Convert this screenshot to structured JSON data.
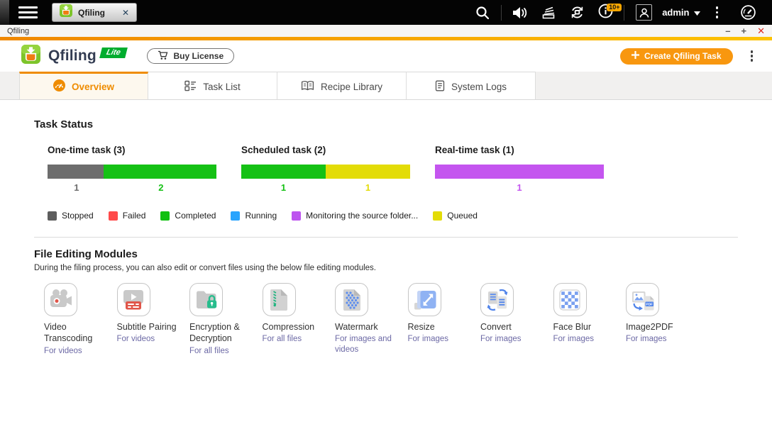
{
  "taskbar": {
    "tab_label": "Qfiling",
    "tab_close_glyph": "✕",
    "notification_badge": "10+",
    "username": "admin",
    "icon_names": [
      "main-menu-icon",
      "qfiling-logo-icon",
      "search-icon",
      "volume-icon",
      "background-tasks-icon",
      "sync-icon",
      "notifications-icon",
      "user-avatar-icon",
      "more-menu-icon",
      "resource-monitor-icon"
    ]
  },
  "window": {
    "title": "Qfiling",
    "minimize_glyph": "–",
    "maximize_glyph": "+",
    "close_glyph": "✕"
  },
  "header": {
    "app_name": "Qfiling",
    "edition_badge": "Lite",
    "buy_license_label": "Buy License",
    "create_task_label": "Create Qfiling Task"
  },
  "tabs": [
    {
      "label": "Overview",
      "icon": "overview",
      "active": true
    },
    {
      "label": "Task List",
      "icon": "tasklist",
      "active": false
    },
    {
      "label": "Recipe Library",
      "icon": "recipes",
      "active": false
    },
    {
      "label": "System Logs",
      "icon": "syslogs",
      "active": false
    }
  ],
  "task_status": {
    "title": "Task Status",
    "groups": [
      {
        "title": "One-time task (3)",
        "segments": [
          {
            "value": 1,
            "status": "Stopped",
            "color": "#6d6d6d"
          },
          {
            "value": 2,
            "status": "Completed",
            "color": "#15c115"
          }
        ]
      },
      {
        "title": "Scheduled task (2)",
        "segments": [
          {
            "value": 1,
            "status": "Completed",
            "color": "#15c115"
          },
          {
            "value": 1,
            "status": "Queued",
            "color": "#e3dc07"
          }
        ]
      },
      {
        "title": "Real-time task (1)",
        "segments": [
          {
            "value": 1,
            "status": "Monitoring the source folder",
            "color": "#c455ef"
          }
        ]
      }
    ],
    "legend": [
      {
        "label": "Stopped",
        "color": "#5d5d5d"
      },
      {
        "label": "Failed",
        "color": "#ff4a4a"
      },
      {
        "label": "Completed",
        "color": "#10c010"
      },
      {
        "label": "Running",
        "color": "#2aa4fd"
      },
      {
        "label": "Monitoring the source folder...",
        "color": "#bd54ef"
      },
      {
        "label": "Queued",
        "color": "#e3dc07"
      }
    ]
  },
  "modules": {
    "title": "File Editing Modules",
    "subtitle": "During the filing process, you can also edit or convert files using the below file editing modules.",
    "items": [
      {
        "name": "Video Transcoding",
        "scope": "For videos",
        "icon": "video"
      },
      {
        "name": "Subtitle Pairing",
        "scope": "For videos",
        "icon": "subtitle"
      },
      {
        "name": "Encryption & Decryption",
        "scope": "For all files",
        "icon": "encryption"
      },
      {
        "name": "Compression",
        "scope": "For all files",
        "icon": "compression"
      },
      {
        "name": "Watermark",
        "scope": "For images and videos",
        "icon": "watermark"
      },
      {
        "name": "Resize",
        "scope": "For images",
        "icon": "resize"
      },
      {
        "name": "Convert",
        "scope": "For images",
        "icon": "convert"
      },
      {
        "name": "Face Blur",
        "scope": "For images",
        "icon": "faceblur"
      },
      {
        "name": "Image2PDF",
        "scope": "For images",
        "icon": "image2pdf"
      }
    ]
  },
  "colors": {
    "accent_orange": "#ef8c00",
    "create_button": "#f8970f",
    "lite_badge_green": "#00ad2e",
    "titlebar_gradient": [
      "#f08800",
      "#fdc300"
    ]
  }
}
